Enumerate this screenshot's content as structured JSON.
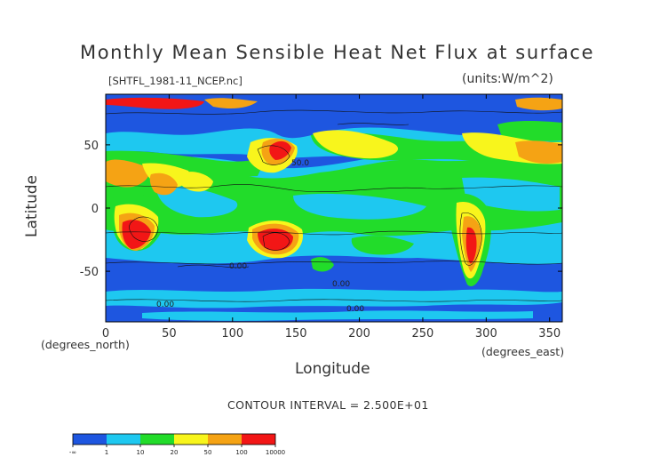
{
  "chart_data": {
    "type": "heatmap",
    "title": "Monthly Mean Sensible Heat Net Flux at surface",
    "subtitle": "[SHTFL_1981-11_NCEP.nc]",
    "units": "(units:W/m^2)",
    "xlabel": "Longitude",
    "ylabel": "Latitude",
    "xunit_note": "(degrees_east)",
    "yunit_note": "(degrees_north)",
    "xlim": [
      0,
      360
    ],
    "ylim": [
      -90,
      90
    ],
    "xticks": [
      0,
      50,
      100,
      150,
      200,
      250,
      300,
      350
    ],
    "yticks": [
      -50,
      0,
      50
    ],
    "contour_interval": "CONTOUR INTERVAL = 2.500E+01",
    "contour_labels": [
      "0.00",
      "0.00",
      "0.00",
      "0.00",
      "50.0"
    ],
    "colorbar": {
      "tick_labels": [
        "-∞",
        "1",
        "10",
        "20",
        "50",
        "100",
        "10000"
      ],
      "colors": [
        "#1e56e0",
        "#1ec8f0",
        "#22dc2a",
        "#f8f51c",
        "#f5a314",
        "#f21616"
      ]
    },
    "grid": false
  }
}
